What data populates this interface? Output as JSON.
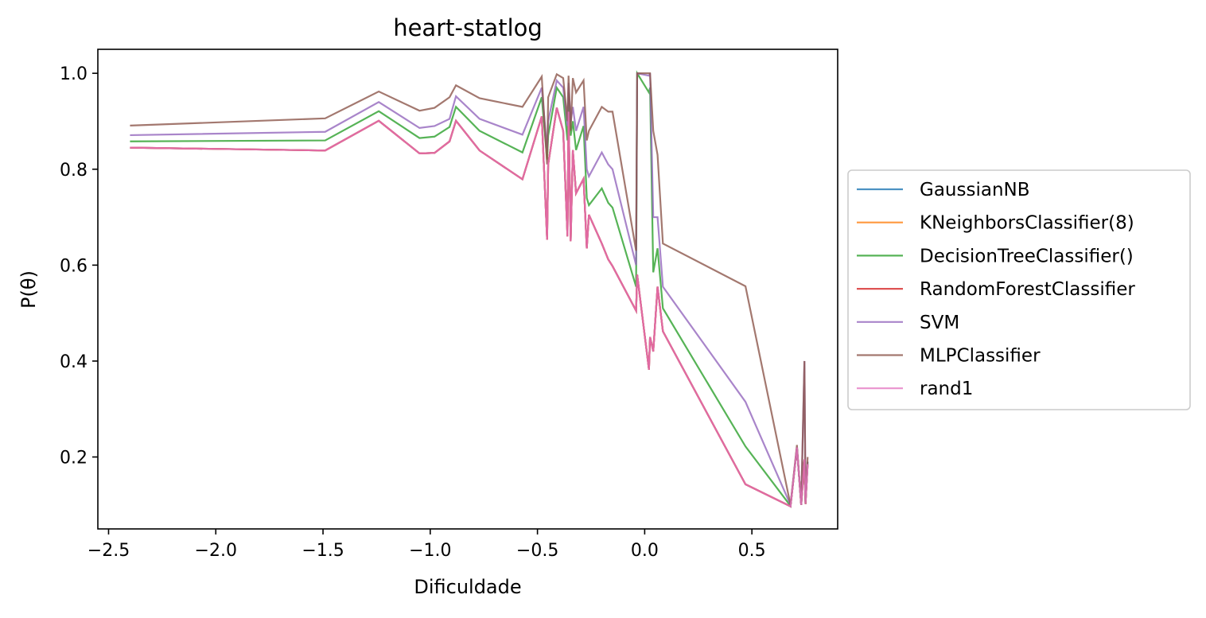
{
  "chart_data": {
    "type": "line",
    "title": "heart-statlog",
    "xlabel": "Dificuldade",
    "ylabel": "P(θ)",
    "xlim": [
      -2.55,
      0.9
    ],
    "ylim": [
      0.05,
      1.05
    ],
    "xticks": [
      {
        "value": -2.5,
        "label": "−2.5"
      },
      {
        "value": -2.0,
        "label": "−2.0"
      },
      {
        "value": -1.5,
        "label": "−1.5"
      },
      {
        "value": -1.0,
        "label": "−1.0"
      },
      {
        "value": -0.5,
        "label": "−0.5"
      },
      {
        "value": 0.0,
        "label": "0.0"
      },
      {
        "value": 0.5,
        "label": "0.5"
      }
    ],
    "yticks": [
      {
        "value": 0.2,
        "label": "0.2"
      },
      {
        "value": 0.4,
        "label": "0.4"
      },
      {
        "value": 0.6,
        "label": "0.6"
      },
      {
        "value": 0.8,
        "label": "0.8"
      },
      {
        "value": 1.0,
        "label": "1.0"
      }
    ],
    "grid": false,
    "legend_position": "outside right",
    "x": [
      -2.4,
      -1.49,
      -1.24,
      -1.05,
      -0.98,
      -0.91,
      -0.88,
      -0.77,
      -0.57,
      -0.48,
      -0.455,
      -0.45,
      -0.41,
      -0.38,
      -0.36,
      -0.355,
      -0.345,
      -0.335,
      -0.32,
      -0.285,
      -0.27,
      -0.26,
      -0.2,
      -0.17,
      -0.15,
      -0.04,
      -0.035,
      0.02,
      0.025,
      0.04,
      0.06,
      0.085,
      0.47,
      0.68,
      0.71,
      0.73,
      0.745,
      0.75,
      0.76
    ],
    "series": [
      {
        "name": "GaussianNB",
        "color": "#1f77b4",
        "values": [
          0.845,
          0.839,
          0.901,
          0.833,
          0.834,
          0.858,
          0.901,
          0.839,
          0.779,
          0.91,
          0.653,
          0.81,
          0.928,
          0.88,
          0.66,
          0.92,
          0.65,
          0.84,
          0.75,
          0.78,
          0.635,
          0.705,
          0.645,
          0.612,
          0.598,
          0.505,
          0.58,
          0.382,
          0.45,
          0.42,
          0.555,
          0.462,
          0.143,
          0.097,
          0.22,
          0.1,
          0.195,
          0.102,
          0.185
        ]
      },
      {
        "name": "KNeighborsClassifier(8)",
        "color": "#ff7f0e",
        "values": [
          0.845,
          0.839,
          0.901,
          0.833,
          0.834,
          0.858,
          0.901,
          0.839,
          0.779,
          0.91,
          0.653,
          0.81,
          0.928,
          0.88,
          0.66,
          0.92,
          0.65,
          0.84,
          0.75,
          0.78,
          0.635,
          0.705,
          0.645,
          0.612,
          0.598,
          0.505,
          0.58,
          0.382,
          0.45,
          0.42,
          0.555,
          0.462,
          0.143,
          0.097,
          0.22,
          0.1,
          0.195,
          0.102,
          0.185
        ]
      },
      {
        "name": "DecisionTreeClassifier()",
        "color": "#2ca02c",
        "values": [
          0.858,
          0.86,
          0.921,
          0.865,
          0.868,
          0.888,
          0.93,
          0.88,
          0.835,
          0.95,
          0.82,
          0.87,
          0.97,
          0.95,
          0.86,
          0.96,
          0.87,
          0.9,
          0.84,
          0.89,
          0.74,
          0.725,
          0.76,
          0.73,
          0.72,
          0.555,
          1.0,
          0.96,
          0.97,
          0.585,
          0.635,
          0.51,
          0.222,
          0.098,
          0.22,
          0.1,
          0.195,
          0.102,
          0.19
        ]
      },
      {
        "name": "RandomForestClassifier",
        "color": "#d62728",
        "values": [
          0.845,
          0.839,
          0.901,
          0.833,
          0.834,
          0.858,
          0.901,
          0.839,
          0.779,
          0.91,
          0.653,
          0.81,
          0.928,
          0.88,
          0.66,
          0.92,
          0.65,
          0.84,
          0.75,
          0.78,
          0.635,
          0.705,
          0.645,
          0.612,
          0.598,
          0.505,
          0.58,
          0.382,
          0.45,
          0.42,
          0.555,
          0.462,
          0.143,
          0.097,
          0.22,
          0.1,
          0.195,
          0.102,
          0.185
        ]
      },
      {
        "name": "SVM",
        "color": "#9467bd",
        "values": [
          0.871,
          0.878,
          0.94,
          0.886,
          0.89,
          0.905,
          0.952,
          0.905,
          0.872,
          0.97,
          0.84,
          0.9,
          0.985,
          0.97,
          0.89,
          0.98,
          0.9,
          0.93,
          0.88,
          0.93,
          0.8,
          0.785,
          0.835,
          0.81,
          0.8,
          0.6,
          1.0,
          0.995,
          1.0,
          0.7,
          0.7,
          0.555,
          0.315,
          0.1,
          0.22,
          0.1,
          0.4,
          0.11,
          0.19
        ]
      },
      {
        "name": "MLPClassifier",
        "color": "#8c564b",
        "values": [
          0.891,
          0.906,
          0.962,
          0.922,
          0.928,
          0.95,
          0.975,
          0.948,
          0.93,
          0.993,
          0.81,
          0.95,
          0.998,
          0.99,
          0.9,
          0.995,
          0.88,
          0.99,
          0.96,
          0.985,
          0.86,
          0.88,
          0.93,
          0.92,
          0.92,
          0.63,
          1.0,
          1.0,
          1.0,
          0.88,
          0.83,
          0.645,
          0.556,
          0.1,
          0.225,
          0.1,
          0.4,
          0.105,
          0.2
        ]
      },
      {
        "name": "rand1",
        "color": "#e377c2",
        "values": [
          0.845,
          0.839,
          0.901,
          0.833,
          0.834,
          0.858,
          0.901,
          0.839,
          0.779,
          0.91,
          0.653,
          0.81,
          0.928,
          0.88,
          0.66,
          0.92,
          0.65,
          0.84,
          0.75,
          0.78,
          0.635,
          0.705,
          0.645,
          0.612,
          0.598,
          0.505,
          0.58,
          0.382,
          0.45,
          0.42,
          0.555,
          0.462,
          0.143,
          0.097,
          0.22,
          0.1,
          0.195,
          0.102,
          0.185
        ]
      }
    ]
  }
}
